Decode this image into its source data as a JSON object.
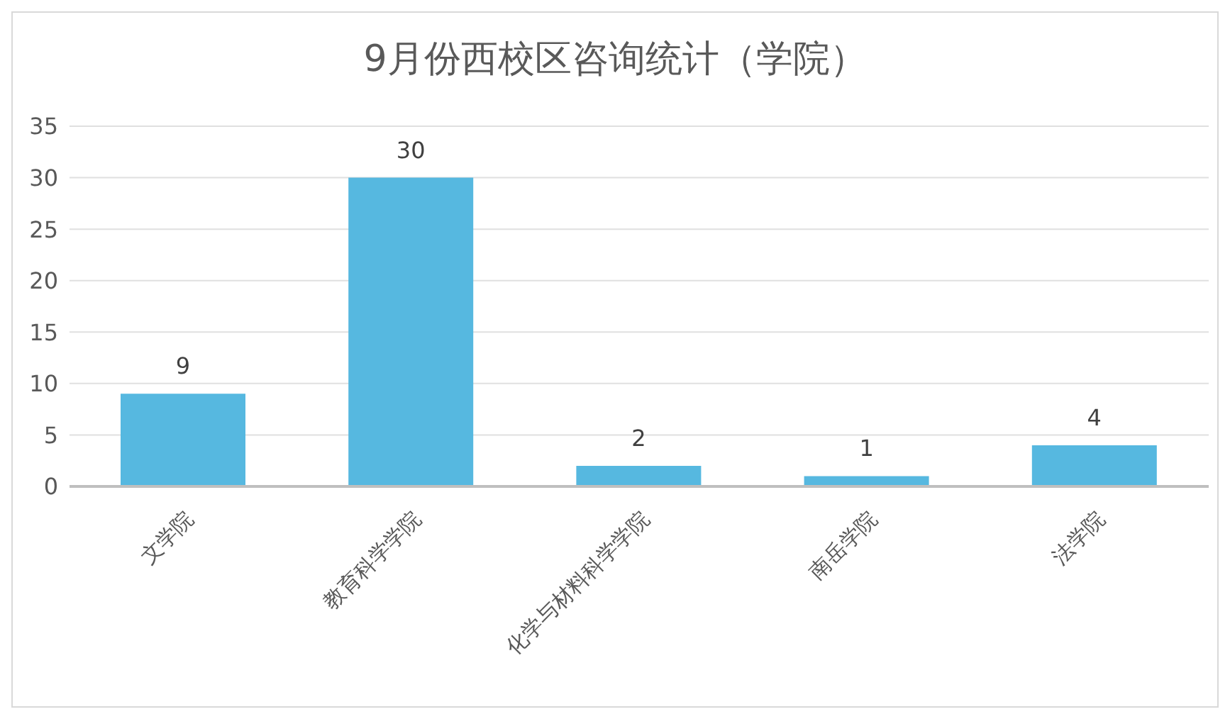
{
  "chart_data": {
    "type": "bar",
    "title": "9月份西校区咨询统计（学院）",
    "categories": [
      "文学院",
      "教育科学学院",
      "化学与材料科学学院",
      "南岳学院",
      "法学院"
    ],
    "values": [
      9,
      30,
      2,
      1,
      4
    ],
    "color": "#56b8e0",
    "ylim": [
      0,
      35
    ],
    "yticks": [
      0,
      5,
      10,
      15,
      20,
      25,
      30,
      35
    ],
    "grid": "y",
    "data_labels": true,
    "legend": false
  }
}
